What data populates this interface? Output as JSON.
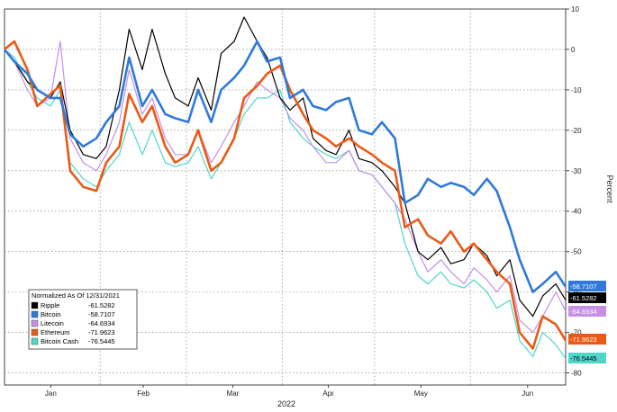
{
  "chart_data": {
    "type": "line",
    "xlabel": "2022",
    "ylabel": "Percent",
    "ylim": [
      -83,
      10
    ],
    "x_ticks": [
      "Jan",
      "Feb",
      "Mar",
      "Apr",
      "May",
      "Jun"
    ],
    "y_ticks": [
      10,
      0,
      -10,
      -20,
      -30,
      -40,
      -50,
      -60,
      -70,
      -80
    ],
    "y_tick_labels": [
      "10",
      "0",
      "-10",
      "-20",
      "-30",
      "-40",
      "-50",
      "-60",
      "-70",
      "-80"
    ],
    "grid": true,
    "legend": {
      "title": "Normalized As Of 12/31/2021",
      "placement": "bottom-left"
    },
    "series": [
      {
        "name": "Ripple",
        "final": "-61.5282",
        "color": "#000000",
        "points": [
          [
            0,
            0
          ],
          [
            3,
            -3
          ],
          [
            7,
            -8
          ],
          [
            10,
            -10
          ],
          [
            14,
            -12
          ],
          [
            17,
            -8
          ],
          [
            20,
            -20
          ],
          [
            24,
            -26
          ],
          [
            28,
            -27
          ],
          [
            31,
            -24
          ],
          [
            35,
            -10
          ],
          [
            38,
            5
          ],
          [
            42,
            -5
          ],
          [
            45,
            5
          ],
          [
            49,
            -6
          ],
          [
            52,
            -12
          ],
          [
            56,
            -14
          ],
          [
            59,
            -7
          ],
          [
            63,
            -15
          ],
          [
            66,
            -1
          ],
          [
            70,
            2
          ],
          [
            73,
            8
          ],
          [
            77,
            2
          ],
          [
            80,
            -2
          ],
          [
            84,
            -12
          ],
          [
            87,
            -15
          ],
          [
            91,
            -12
          ],
          [
            94,
            -22
          ],
          [
            98,
            -25
          ],
          [
            101,
            -26
          ],
          [
            105,
            -20
          ],
          [
            108,
            -27
          ],
          [
            112,
            -28
          ],
          [
            115,
            -30
          ],
          [
            119,
            -34
          ],
          [
            122,
            -38
          ],
          [
            126,
            -50
          ],
          [
            129,
            -52
          ],
          [
            133,
            -49
          ],
          [
            136,
            -53
          ],
          [
            140,
            -52
          ],
          [
            143,
            -48
          ],
          [
            147,
            -51
          ],
          [
            150,
            -56
          ],
          [
            154,
            -52
          ],
          [
            157,
            -62
          ],
          [
            161,
            -66
          ],
          [
            164,
            -61
          ],
          [
            168,
            -58
          ],
          [
            171,
            -62
          ]
        ]
      },
      {
        "name": "Bitcoin",
        "final": "-58.7107",
        "color": "#2f7ad8",
        "points": [
          [
            0,
            0
          ],
          [
            3,
            -3
          ],
          [
            7,
            -6
          ],
          [
            10,
            -10
          ],
          [
            14,
            -12
          ],
          [
            17,
            -12
          ],
          [
            20,
            -21
          ],
          [
            24,
            -24
          ],
          [
            28,
            -22
          ],
          [
            31,
            -18
          ],
          [
            35,
            -14
          ],
          [
            38,
            -2
          ],
          [
            42,
            -14
          ],
          [
            45,
            -10
          ],
          [
            49,
            -16
          ],
          [
            52,
            -17
          ],
          [
            56,
            -18
          ],
          [
            59,
            -10
          ],
          [
            63,
            -18
          ],
          [
            66,
            -10
          ],
          [
            70,
            -7
          ],
          [
            73,
            -4
          ],
          [
            77,
            2
          ],
          [
            80,
            -3
          ],
          [
            84,
            -2
          ],
          [
            87,
            -12
          ],
          [
            91,
            -10
          ],
          [
            94,
            -14
          ],
          [
            98,
            -15
          ],
          [
            101,
            -13
          ],
          [
            105,
            -12
          ],
          [
            108,
            -20
          ],
          [
            112,
            -21
          ],
          [
            115,
            -18
          ],
          [
            119,
            -22
          ],
          [
            122,
            -38
          ],
          [
            126,
            -36
          ],
          [
            129,
            -32
          ],
          [
            133,
            -34
          ],
          [
            136,
            -33
          ],
          [
            140,
            -34
          ],
          [
            143,
            -36
          ],
          [
            147,
            -32
          ],
          [
            150,
            -35
          ],
          [
            154,
            -44
          ],
          [
            157,
            -52
          ],
          [
            161,
            -60
          ],
          [
            164,
            -58
          ],
          [
            168,
            -55
          ],
          [
            171,
            -58.7
          ]
        ]
      },
      {
        "name": "Litecoin",
        "final": "-64.6934",
        "color": "#c590e6",
        "points": [
          [
            0,
            0
          ],
          [
            3,
            -3
          ],
          [
            7,
            -10
          ],
          [
            10,
            -14
          ],
          [
            14,
            -12
          ],
          [
            17,
            2
          ],
          [
            20,
            -22
          ],
          [
            24,
            -28
          ],
          [
            28,
            -30
          ],
          [
            31,
            -26
          ],
          [
            35,
            -18
          ],
          [
            38,
            -5
          ],
          [
            42,
            -16
          ],
          [
            45,
            -12
          ],
          [
            49,
            -22
          ],
          [
            52,
            -26
          ],
          [
            56,
            -26
          ],
          [
            59,
            -20
          ],
          [
            63,
            -28
          ],
          [
            66,
            -24
          ],
          [
            70,
            -18
          ],
          [
            73,
            -14
          ],
          [
            77,
            -8
          ],
          [
            80,
            -10
          ],
          [
            84,
            -12
          ],
          [
            87,
            -17
          ],
          [
            91,
            -20
          ],
          [
            94,
            -24
          ],
          [
            98,
            -28
          ],
          [
            101,
            -28
          ],
          [
            105,
            -25
          ],
          [
            108,
            -30
          ],
          [
            112,
            -31
          ],
          [
            115,
            -34
          ],
          [
            119,
            -38
          ],
          [
            122,
            -42
          ],
          [
            126,
            -50
          ],
          [
            129,
            -55
          ],
          [
            133,
            -52
          ],
          [
            136,
            -55
          ],
          [
            140,
            -58
          ],
          [
            143,
            -54
          ],
          [
            147,
            -57
          ],
          [
            150,
            -60
          ],
          [
            154,
            -56
          ],
          [
            157,
            -67
          ],
          [
            161,
            -70
          ],
          [
            164,
            -66
          ],
          [
            168,
            -60
          ],
          [
            171,
            -64.7
          ]
        ]
      },
      {
        "name": "Ethereum",
        "final": "-71.9623",
        "color": "#ea5a16",
        "points": [
          [
            0,
            0
          ],
          [
            3,
            2
          ],
          [
            7,
            -5
          ],
          [
            10,
            -14
          ],
          [
            14,
            -11
          ],
          [
            17,
            -9
          ],
          [
            20,
            -30
          ],
          [
            24,
            -34
          ],
          [
            28,
            -35
          ],
          [
            31,
            -28
          ],
          [
            35,
            -24
          ],
          [
            38,
            -11
          ],
          [
            42,
            -18
          ],
          [
            45,
            -14
          ],
          [
            49,
            -24
          ],
          [
            52,
            -28
          ],
          [
            56,
            -26
          ],
          [
            59,
            -20
          ],
          [
            63,
            -30
          ],
          [
            66,
            -28
          ],
          [
            70,
            -22
          ],
          [
            73,
            -12
          ],
          [
            77,
            -9
          ],
          [
            80,
            -6
          ],
          [
            84,
            -4
          ],
          [
            87,
            -10
          ],
          [
            91,
            -16
          ],
          [
            94,
            -20
          ],
          [
            98,
            -22
          ],
          [
            101,
            -24
          ],
          [
            105,
            -22
          ],
          [
            108,
            -24
          ],
          [
            112,
            -26
          ],
          [
            115,
            -28
          ],
          [
            119,
            -30
          ],
          [
            122,
            -44
          ],
          [
            126,
            -42
          ],
          [
            129,
            -46
          ],
          [
            133,
            -48
          ],
          [
            136,
            -45
          ],
          [
            140,
            -50
          ],
          [
            143,
            -48
          ],
          [
            147,
            -52
          ],
          [
            150,
            -55
          ],
          [
            154,
            -58
          ],
          [
            157,
            -70
          ],
          [
            161,
            -74
          ],
          [
            164,
            -66
          ],
          [
            168,
            -68
          ],
          [
            171,
            -72
          ]
        ]
      },
      {
        "name": "Bitcoin Cash",
        "final": "-76.5445",
        "color": "#4fd6c9",
        "points": [
          [
            0,
            0
          ],
          [
            3,
            -2
          ],
          [
            7,
            -8
          ],
          [
            10,
            -12
          ],
          [
            14,
            -14
          ],
          [
            17,
            -10
          ],
          [
            20,
            -28
          ],
          [
            24,
            -32
          ],
          [
            28,
            -34
          ],
          [
            31,
            -30
          ],
          [
            35,
            -26
          ],
          [
            38,
            -18
          ],
          [
            42,
            -26
          ],
          [
            45,
            -20
          ],
          [
            49,
            -28
          ],
          [
            52,
            -29
          ],
          [
            56,
            -28
          ],
          [
            59,
            -24
          ],
          [
            63,
            -32
          ],
          [
            66,
            -28
          ],
          [
            70,
            -22
          ],
          [
            73,
            -16
          ],
          [
            77,
            -12
          ],
          [
            80,
            -12
          ],
          [
            84,
            -10
          ],
          [
            87,
            -18
          ],
          [
            91,
            -22
          ],
          [
            94,
            -24
          ],
          [
            98,
            -26
          ],
          [
            101,
            -27
          ],
          [
            105,
            -25
          ],
          [
            108,
            -30
          ],
          [
            112,
            -31
          ],
          [
            115,
            -34
          ],
          [
            119,
            -38
          ],
          [
            122,
            -48
          ],
          [
            126,
            -56
          ],
          [
            129,
            -58
          ],
          [
            133,
            -55
          ],
          [
            136,
            -58
          ],
          [
            140,
            -59
          ],
          [
            143,
            -57
          ],
          [
            147,
            -60
          ],
          [
            150,
            -64
          ],
          [
            154,
            -62
          ],
          [
            157,
            -72
          ],
          [
            161,
            -76
          ],
          [
            164,
            -70
          ],
          [
            168,
            -73
          ],
          [
            171,
            -76.5
          ]
        ]
      }
    ]
  }
}
